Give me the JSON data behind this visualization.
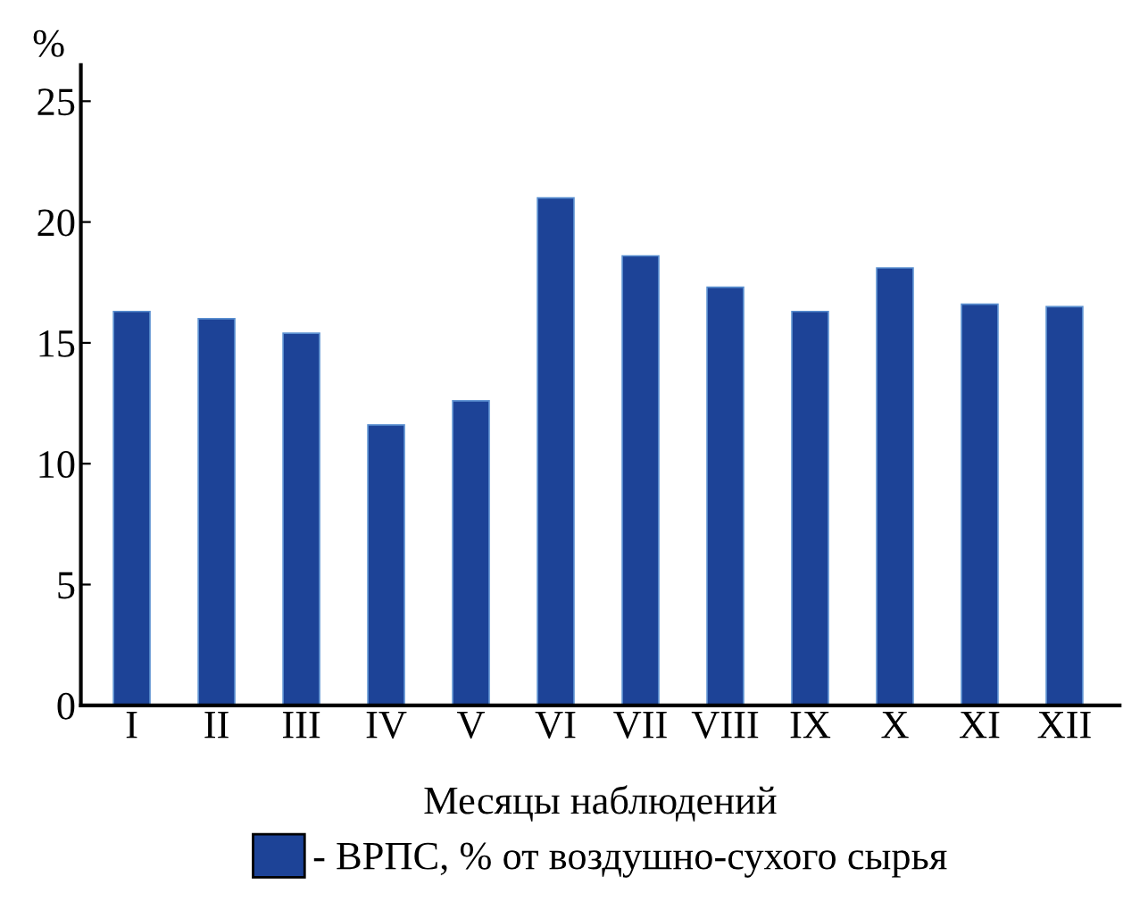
{
  "chart_data": {
    "type": "bar",
    "xlabel": "Месяцы наблюдений",
    "ylabel": "%",
    "categories": [
      "I",
      "II",
      "III",
      "IV",
      "V",
      "VI",
      "VII",
      "VIII",
      "IX",
      "X",
      "XI",
      "XII"
    ],
    "series": [
      {
        "name": "- ВРПС, % от воздушно-сухого сырья",
        "color": "#1d4397",
        "values": [
          16.3,
          16.0,
          15.4,
          11.6,
          12.6,
          21.0,
          18.6,
          17.3,
          16.3,
          18.1,
          16.6,
          16.5
        ]
      }
    ],
    "ylim": [
      0,
      26.5
    ],
    "yticks": [
      0,
      5,
      10,
      15,
      20,
      25
    ],
    "grid": false,
    "legend": "bottom"
  }
}
